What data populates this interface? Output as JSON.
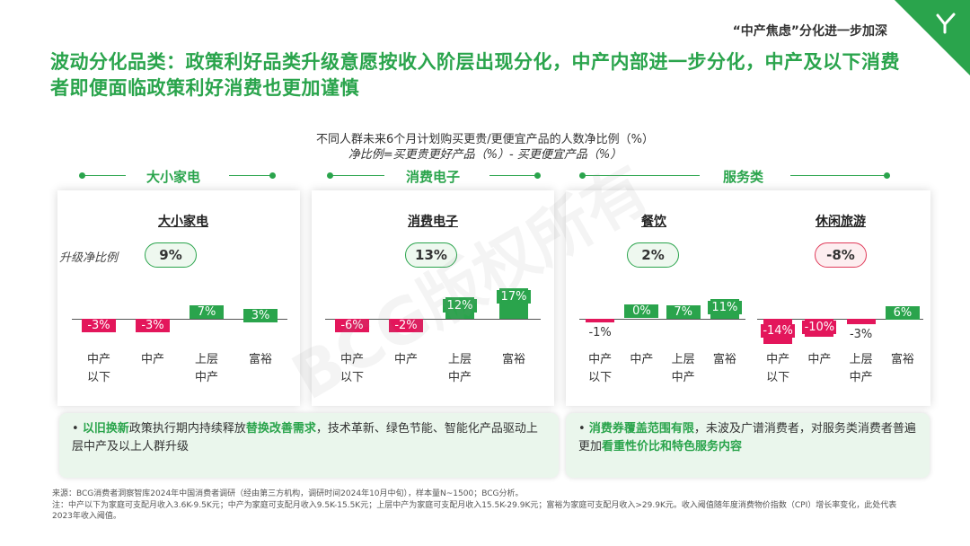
{
  "header_tag": "“中产焦虑”分化进一步加深",
  "title": "波动分化品类：政策利好品类升级意愿按收入阶层出现分化，中产内部进一步分化，中产及以下消费者即便面临政策利好消费也更加谨慎",
  "subtitle_line1": "不同人群未来6个月计划购买更贵/更便宜产品的人数净比例（%）",
  "subtitle_line2": "净比例=买更贵更好产品（%）- 买更便宜产品（%）",
  "net_ratio_label": "升级净比例",
  "watermark": "BCG版权所有",
  "categories": [
    "大小家电",
    "消费电子",
    "服务类"
  ],
  "colors": {
    "positive": "#2aa44c",
    "negative": "#e3165b",
    "title": "#2aa44c"
  },
  "chart_data": [
    {
      "type": "bar",
      "title": "大小家电",
      "net": "9%",
      "net_sign": "positive",
      "categories": [
        "中产以下",
        "中产",
        "上层中产",
        "富裕"
      ],
      "category_lines": [
        [
          "中产",
          "以下"
        ],
        [
          "中产"
        ],
        [
          "上层",
          "中产"
        ],
        [
          "富裕"
        ]
      ],
      "values": [
        -3,
        -3,
        7,
        3
      ],
      "labels": [
        "-3%",
        "-3%",
        "7%",
        "3%"
      ]
    },
    {
      "type": "bar",
      "title": "消费电子",
      "net": "13%",
      "net_sign": "positive",
      "categories": [
        "中产以下",
        "中产",
        "上层中产",
        "富裕"
      ],
      "category_lines": [
        [
          "中产",
          "以下"
        ],
        [
          "中产"
        ],
        [
          "上层",
          "中产"
        ],
        [
          "富裕"
        ]
      ],
      "values": [
        -6,
        -2,
        12,
        17
      ],
      "labels": [
        "-6%",
        "-2%",
        "12%",
        "17%"
      ]
    },
    {
      "type": "bar",
      "title": "餐饮",
      "net": "2%",
      "net_sign": "positive",
      "categories": [
        "中产以下",
        "中产",
        "上层中产",
        "富裕"
      ],
      "category_lines": [
        [
          "中产",
          "以下"
        ],
        [
          "中产"
        ],
        [
          "上层",
          "中产"
        ],
        [
          "富裕"
        ]
      ],
      "values": [
        -1,
        0,
        7,
        11
      ],
      "labels": [
        "-1%",
        "0%",
        "7%",
        "11%"
      ]
    },
    {
      "type": "bar",
      "title": "休闲旅游",
      "net": "-8%",
      "net_sign": "negative",
      "categories": [
        "中产以下",
        "中产",
        "上层中产",
        "富裕"
      ],
      "category_lines": [
        [
          "中产",
          "以下"
        ],
        [
          "中产"
        ],
        [
          "上层",
          "中产"
        ],
        [
          "富裕"
        ]
      ],
      "values": [
        -14,
        -10,
        -3,
        6
      ],
      "labels": [
        "-14%",
        "-10%",
        "-3%",
        "6%"
      ]
    }
  ],
  "note_left": {
    "b1": "以旧换新",
    "t1": "政策执行期内持续释放",
    "b2": "替换改善需求",
    "t2": "，技术革新、绿色节能、智能化产品驱动上层中产及以上人群升级"
  },
  "note_right": {
    "b1": "消费券覆盖范围有限",
    "t1": "，未波及广谱消费者，对服务类消费者普遍更加",
    "b2": "看重性价比和特色服务内容"
  },
  "footer_source": "来源：BCG消费者洞察智库2024年中国消费者调研（经由第三方机构，调研时间2024年10月中旬），样本量N~1500；BCG分析。",
  "footer_note": "注：中产以下为家庭可支配月收入3.6K-9.5K元；中产为家庭可支配月收入9.5K-15.5K元；上层中产为家庭可支配月收入15.5K-29.9K元；富裕为家庭可支配月收入>29.9K元。收入阈值随年度消费物价指数（CPI）增长率变化，此处代表2023年收入阈值。"
}
